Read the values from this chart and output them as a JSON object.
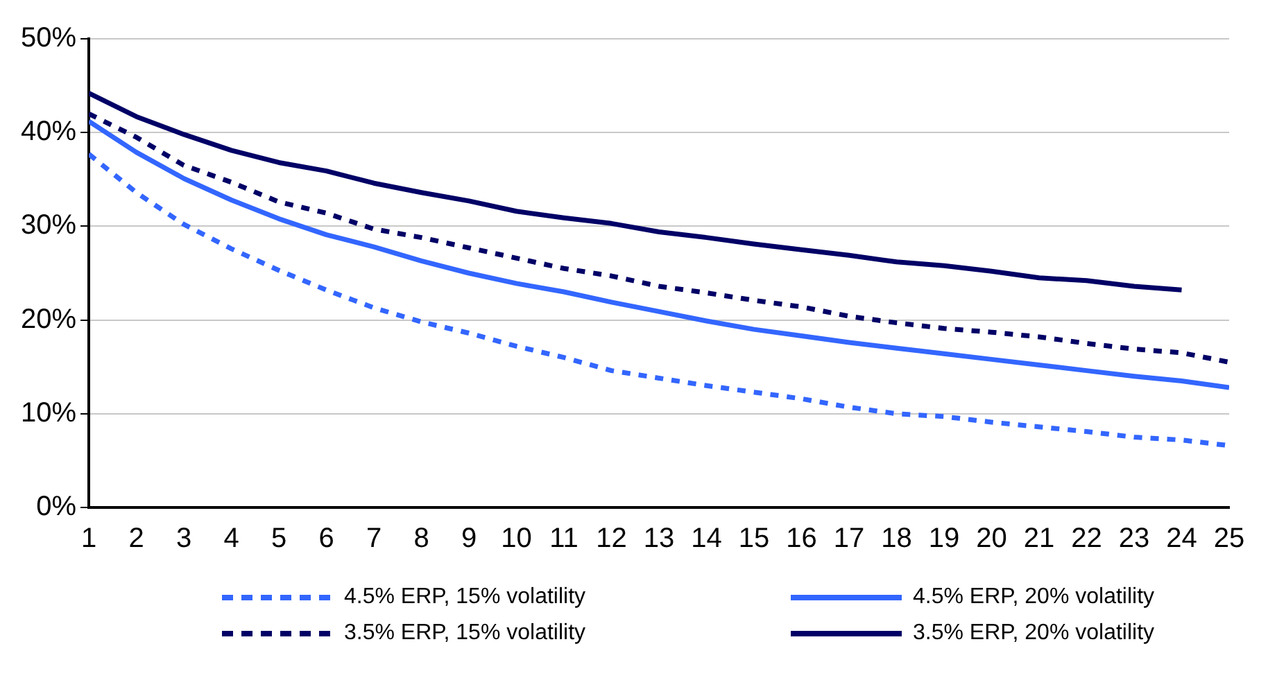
{
  "chart_data": {
    "type": "line",
    "x": [
      1,
      2,
      3,
      4,
      5,
      6,
      7,
      8,
      9,
      10,
      11,
      12,
      13,
      14,
      15,
      16,
      17,
      18,
      19,
      20,
      21,
      22,
      23,
      24,
      25
    ],
    "xlim": [
      1,
      25
    ],
    "xticks": [
      1,
      2,
      3,
      4,
      5,
      6,
      7,
      8,
      9,
      10,
      11,
      12,
      13,
      14,
      15,
      16,
      17,
      18,
      19,
      20,
      21,
      22,
      23,
      24,
      25
    ],
    "ylim": [
      0,
      50
    ],
    "yticks": [
      {
        "value": 0,
        "label": "0%"
      },
      {
        "value": 10,
        "label": "10%"
      },
      {
        "value": 20,
        "label": "20%"
      },
      {
        "value": 30,
        "label": "30%"
      },
      {
        "value": 40,
        "label": "40%"
      },
      {
        "value": 50,
        "label": "50%"
      }
    ],
    "grid": "y",
    "legend": "bottom",
    "marker": "none",
    "series": [
      {
        "name": "4.5% ERP, 15% volatility",
        "color": "#3366ff",
        "line_style": "dashed",
        "values": [
          37.7,
          33.6,
          30.2,
          27.6,
          25.3,
          23.2,
          21.3,
          19.8,
          18.6,
          17.2,
          16.0,
          14.6,
          13.8,
          13.0,
          12.3,
          11.6,
          10.7,
          10.0,
          9.7,
          9.1,
          8.6,
          8.1,
          7.5,
          7.2,
          6.6
        ]
      },
      {
        "name": "4.5% ERP, 20% volatility",
        "color": "#3366ff",
        "line_style": "solid",
        "values": [
          41.2,
          37.9,
          35.1,
          32.8,
          30.8,
          29.1,
          27.8,
          26.3,
          25.0,
          23.9,
          23.0,
          21.9,
          20.9,
          19.9,
          19.0,
          18.3,
          17.6,
          17.0,
          16.4,
          15.8,
          15.2,
          14.6,
          14.0,
          13.5,
          12.8
        ]
      },
      {
        "name": "3.5% ERP, 15% volatility",
        "color": "#000066",
        "line_style": "dashed",
        "values": [
          42.0,
          39.5,
          36.5,
          34.7,
          32.6,
          31.4,
          29.7,
          28.8,
          27.7,
          26.6,
          25.5,
          24.7,
          23.6,
          22.9,
          22.1,
          21.4,
          20.4,
          19.7,
          19.1,
          18.7,
          18.2,
          17.5,
          16.9,
          16.5,
          15.5
        ]
      },
      {
        "name": "3.5% ERP, 20% volatility",
        "color": "#000066",
        "line_style": "solid",
        "values": [
          44.2,
          41.7,
          39.8,
          38.1,
          36.8,
          35.9,
          34.6,
          33.6,
          32.7,
          31.6,
          30.9,
          30.3,
          29.4,
          28.8,
          28.1,
          27.5,
          26.9,
          26.2,
          25.8,
          25.2,
          24.5,
          24.2,
          23.6,
          23.2,
          null
        ]
      }
    ]
  }
}
